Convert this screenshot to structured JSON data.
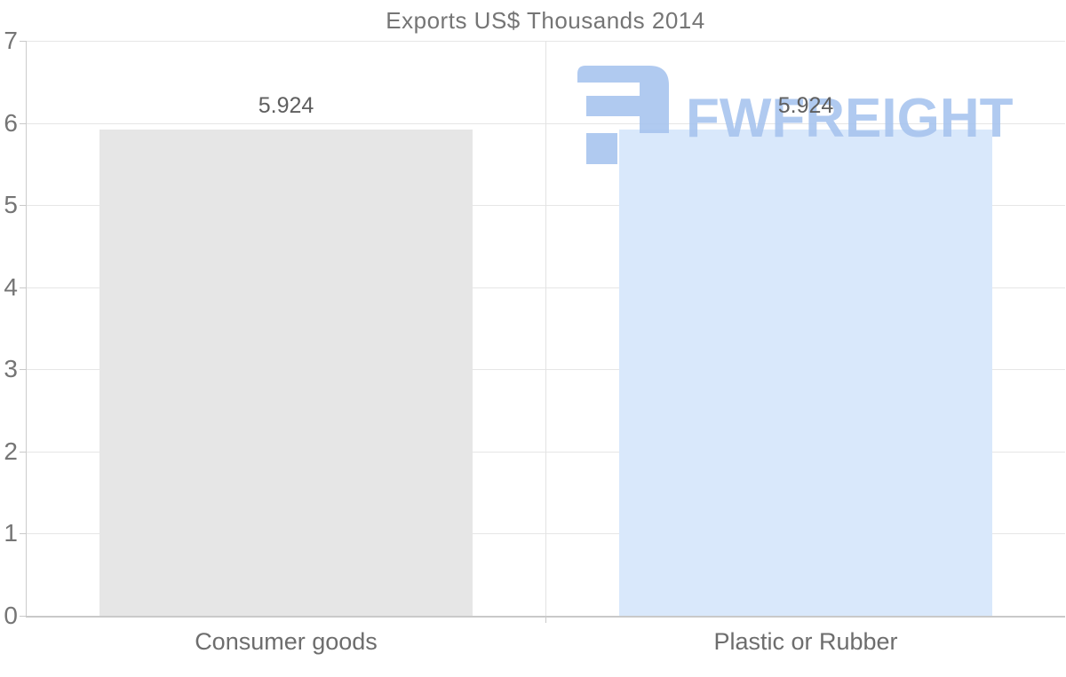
{
  "title": "Exports US$ Thousands 2014",
  "watermark": {
    "brand": "FWFREIGHT",
    "icon": "fwfreight-logo-icon",
    "color": "#a6c3ee"
  },
  "chart_data": {
    "type": "bar",
    "title": "Exports US$ Thousands 2014",
    "categories": [
      "Consumer goods",
      "Plastic or Rubber"
    ],
    "values": [
      5.924,
      5.924
    ],
    "value_labels": [
      "5.924",
      "5.924"
    ],
    "bar_colors": [
      "#e6e6e6",
      "#d9e8fb"
    ],
    "xlabel": "",
    "ylabel": "",
    "ylim": [
      0,
      7
    ],
    "yticks": [
      0,
      1,
      2,
      3,
      4,
      5,
      6,
      7
    ],
    "grid": true,
    "legend_position": "none"
  },
  "colors": {
    "title_text": "#757575",
    "axis_label_text": "#757575",
    "category_text": "#6d6d6d",
    "value_label_text": "#5f5f5f",
    "gridline": "#e6e6e6",
    "axis_line": "#c9c9c9",
    "bar_consumer_goods": "#e6e6e6",
    "bar_plastic_or_rubber": "#d9e8fb",
    "watermark_blue": "#a6c3ee"
  }
}
